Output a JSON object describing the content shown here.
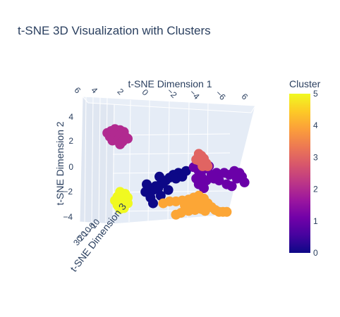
{
  "chart_data": {
    "type": "scatter3d",
    "title": "t-SNE 3D Visualization with Clusters",
    "xlabel": "t-SNE Dimension 1",
    "ylabel": "t-SNE Dimension 2",
    "zlabel": "t-SNE Dimension 3",
    "x_ticks": [
      "6",
      "4",
      "2",
      "0",
      "−2",
      "−4",
      "−6",
      "6"
    ],
    "y_ticks": [
      "4",
      "2",
      "0",
      "−2",
      "−4"
    ],
    "z_ticks": [
      "30",
      "20",
      "10",
      "0",
      "−10"
    ],
    "colorbar": {
      "title": "Cluster",
      "range": [
        0,
        5
      ],
      "ticks": [
        "5",
        "4",
        "3",
        "2",
        "1",
        "0"
      ]
    },
    "clusters": [
      {
        "id": 0,
        "color": "#0d0887",
        "points": [
          [
            1.6,
            -0.2
          ],
          [
            1.0,
            -0.4
          ],
          [
            0.6,
            -0.6
          ],
          [
            0.3,
            -0.9
          ],
          [
            0.0,
            -1.2
          ],
          [
            -0.4,
            -1.6
          ],
          [
            -0.8,
            -1.8
          ],
          [
            -1.0,
            -2.2
          ],
          [
            -0.6,
            -2.0
          ],
          [
            -1.3,
            -2.6
          ],
          [
            -1.6,
            -2.4
          ],
          [
            -1.2,
            -3.0
          ],
          [
            -0.4,
            -2.8
          ],
          [
            0.2,
            -2.2
          ],
          [
            -0.2,
            -1.4
          ],
          [
            0.8,
            -1.0
          ],
          [
            1.3,
            -0.8
          ],
          [
            -1.0,
            -3.6
          ],
          [
            -1.5,
            -1.6
          ],
          [
            -0.5,
            -0.8
          ]
        ]
      },
      {
        "id": 1,
        "color": "#6a00a8",
        "points": [
          [
            2.2,
            0.2
          ],
          [
            2.6,
            -0.2
          ],
          [
            3.0,
            0.0
          ],
          [
            3.4,
            0.3
          ],
          [
            2.8,
            -0.8
          ],
          [
            3.2,
            -1.2
          ],
          [
            2.6,
            -1.6
          ],
          [
            3.6,
            -0.6
          ],
          [
            4.0,
            -0.4
          ],
          [
            4.6,
            -0.4
          ],
          [
            5.0,
            -0.6
          ],
          [
            5.4,
            -0.2
          ],
          [
            5.8,
            -0.4
          ],
          [
            6.0,
            -0.8
          ],
          [
            5.6,
            -1.0
          ],
          [
            6.2,
            -1.4
          ],
          [
            4.8,
            -1.6
          ],
          [
            5.2,
            -1.8
          ],
          [
            3.0,
            -2.0
          ],
          [
            2.4,
            -1.0
          ],
          [
            3.8,
            -1.0
          ],
          [
            4.2,
            -1.2
          ]
        ]
      },
      {
        "id": 2,
        "color": "#b12a90",
        "points": [
          [
            -4.6,
            3.8
          ],
          [
            -4.3,
            4.0
          ],
          [
            -4.0,
            4.2
          ],
          [
            -3.6,
            4.1
          ],
          [
            -3.3,
            3.9
          ],
          [
            -4.4,
            3.4
          ],
          [
            -4.0,
            3.5
          ],
          [
            -3.6,
            3.6
          ],
          [
            -3.2,
            3.4
          ],
          [
            -4.2,
            3.0
          ],
          [
            -3.8,
            3.0
          ],
          [
            -3.4,
            2.9
          ],
          [
            -3.0,
            3.2
          ],
          [
            -3.6,
            2.6
          ]
        ]
      },
      {
        "id": 3,
        "color": "#e16462",
        "points": [
          [
            2.6,
            1.6
          ],
          [
            2.8,
            1.4
          ],
          [
            3.0,
            1.1
          ],
          [
            2.6,
            0.9
          ],
          [
            3.2,
            0.6
          ],
          [
            2.9,
            0.3
          ],
          [
            3.3,
            0.3
          ],
          [
            2.4,
            1.0
          ]
        ]
      },
      {
        "id": 4,
        "color": "#fca636",
        "points": [
          [
            -0.2,
            -3.6
          ],
          [
            0.3,
            -3.4
          ],
          [
            0.8,
            -3.4
          ],
          [
            1.3,
            -3.3
          ],
          [
            1.8,
            -3.2
          ],
          [
            2.2,
            -3.0
          ],
          [
            2.6,
            -2.8
          ],
          [
            3.0,
            -3.1
          ],
          [
            3.3,
            -3.6
          ],
          [
            3.6,
            -4.0
          ],
          [
            3.9,
            -4.3
          ],
          [
            4.2,
            -4.5
          ],
          [
            4.5,
            -4.5
          ],
          [
            4.8,
            -4.5
          ],
          [
            3.1,
            -4.4
          ],
          [
            2.8,
            -4.2
          ],
          [
            2.3,
            -4.3
          ],
          [
            1.8,
            -4.4
          ],
          [
            1.2,
            -4.6
          ],
          [
            0.8,
            -4.8
          ],
          [
            1.5,
            -3.8
          ],
          [
            2.6,
            -3.6
          ],
          [
            2.0,
            -3.6
          ]
        ]
      },
      {
        "id": 5,
        "color": "#f0f921",
        "points": [
          [
            -3.6,
            -2.4
          ],
          [
            -3.2,
            -2.6
          ],
          [
            -3.8,
            -2.9
          ],
          [
            -3.4,
            -3.0
          ],
          [
            -3.0,
            -3.0
          ],
          [
            -4.0,
            -3.3
          ],
          [
            -3.6,
            -3.4
          ],
          [
            -3.2,
            -3.4
          ],
          [
            -3.8,
            -3.8
          ],
          [
            -3.4,
            -3.8
          ],
          [
            -3.0,
            -3.6
          ],
          [
            -3.6,
            -4.2
          ],
          [
            -3.3,
            -4.1
          ]
        ]
      }
    ]
  }
}
